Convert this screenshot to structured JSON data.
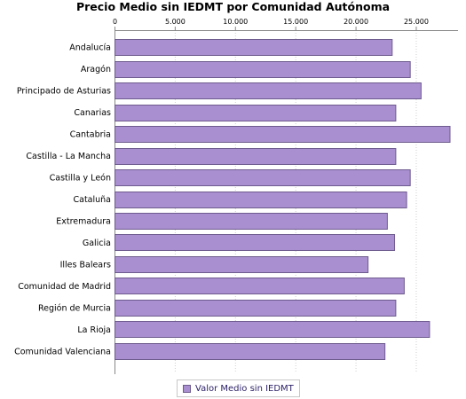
{
  "chart_data": {
    "type": "bar",
    "orientation": "horizontal",
    "title": "Precio Medio sin IEDMT por Comunidad Autónoma",
    "categories": [
      "Andalucía",
      "Aragón",
      "Principado de Asturias",
      "Canarias",
      "Cantabria",
      "Castilla - La Mancha",
      "Castilla y León",
      "Cataluña",
      "Extremadura",
      "Galicia",
      "Illes Balears",
      "Comunidad de Madrid",
      "Región de Murcia",
      "La Rioja",
      "Comunidad Valenciana"
    ],
    "series": [
      {
        "name": "Valor Medio sin IEDMT",
        "values": [
          23000,
          24500,
          25400,
          23300,
          27800,
          23300,
          24500,
          24200,
          22600,
          23200,
          21000,
          24000,
          23300,
          26100,
          22400
        ]
      }
    ],
    "xlim": [
      0,
      28500
    ],
    "xticks": [
      "0",
      "5.000",
      "10.000",
      "15.000",
      "20.000",
      "25.000"
    ],
    "xtick_values": [
      0,
      5000,
      10000,
      15000,
      20000,
      25000
    ],
    "grid": "vertical dotted",
    "legend_position": "bottom",
    "bar_color": "#a98fd0",
    "bar_edge_color": "#6e5b8e"
  }
}
